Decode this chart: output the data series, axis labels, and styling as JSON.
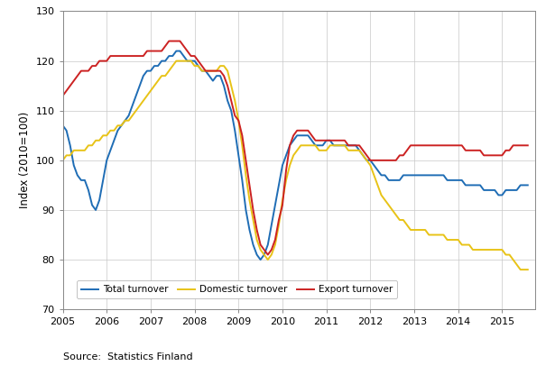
{
  "title": "",
  "ylabel": "Index (2010=100)",
  "source": "Source:  Statistics Finland",
  "ylim": [
    70,
    130
  ],
  "xlim": [
    2005.0,
    2015.75
  ],
  "yticks": [
    70,
    80,
    90,
    100,
    110,
    120,
    130
  ],
  "xticks": [
    2005,
    2006,
    2007,
    2008,
    2009,
    2010,
    2011,
    2012,
    2013,
    2014,
    2015
  ],
  "colors": {
    "total": "#1f6db5",
    "domestic": "#e8c317",
    "export": "#cc2222"
  },
  "legend_labels": [
    "Total turnover",
    "Domestic turnover",
    "Export turnover"
  ],
  "total_x": [
    2005.0,
    2005.083,
    2005.167,
    2005.25,
    2005.333,
    2005.417,
    2005.5,
    2005.583,
    2005.667,
    2005.75,
    2005.833,
    2005.917,
    2006.0,
    2006.083,
    2006.167,
    2006.25,
    2006.333,
    2006.417,
    2006.5,
    2006.583,
    2006.667,
    2006.75,
    2006.833,
    2006.917,
    2007.0,
    2007.083,
    2007.167,
    2007.25,
    2007.333,
    2007.417,
    2007.5,
    2007.583,
    2007.667,
    2007.75,
    2007.833,
    2007.917,
    2008.0,
    2008.083,
    2008.167,
    2008.25,
    2008.333,
    2008.417,
    2008.5,
    2008.583,
    2008.667,
    2008.75,
    2008.833,
    2008.917,
    2009.0,
    2009.083,
    2009.167,
    2009.25,
    2009.333,
    2009.417,
    2009.5,
    2009.583,
    2009.667,
    2009.75,
    2009.833,
    2009.917,
    2010.0,
    2010.083,
    2010.167,
    2010.25,
    2010.333,
    2010.417,
    2010.5,
    2010.583,
    2010.667,
    2010.75,
    2010.833,
    2010.917,
    2011.0,
    2011.083,
    2011.167,
    2011.25,
    2011.333,
    2011.417,
    2011.5,
    2011.583,
    2011.667,
    2011.75,
    2011.833,
    2011.917,
    2012.0,
    2012.083,
    2012.167,
    2012.25,
    2012.333,
    2012.417,
    2012.5,
    2012.583,
    2012.667,
    2012.75,
    2012.833,
    2012.917,
    2013.0,
    2013.083,
    2013.167,
    2013.25,
    2013.333,
    2013.417,
    2013.5,
    2013.583,
    2013.667,
    2013.75,
    2013.833,
    2013.917,
    2014.0,
    2014.083,
    2014.167,
    2014.25,
    2014.333,
    2014.417,
    2014.5,
    2014.583,
    2014.667,
    2014.75,
    2014.833,
    2014.917,
    2015.0,
    2015.083,
    2015.167,
    2015.25,
    2015.333,
    2015.417,
    2015.5,
    2015.583
  ],
  "total_y": [
    107,
    106,
    103,
    99,
    97,
    96,
    96,
    94,
    91,
    90,
    92,
    96,
    100,
    102,
    104,
    106,
    107,
    108,
    109,
    111,
    113,
    115,
    117,
    118,
    118,
    119,
    119,
    120,
    120,
    121,
    121,
    122,
    122,
    121,
    120,
    120,
    120,
    119,
    118,
    118,
    117,
    116,
    117,
    117,
    115,
    112,
    110,
    106,
    101,
    96,
    90,
    86,
    83,
    81,
    80,
    81,
    83,
    87,
    91,
    95,
    99,
    101,
    103,
    104,
    105,
    105,
    105,
    105,
    104,
    103,
    103,
    103,
    104,
    104,
    103,
    103,
    103,
    103,
    103,
    103,
    103,
    102,
    101,
    100,
    100,
    99,
    98,
    97,
    97,
    96,
    96,
    96,
    96,
    97,
    97,
    97,
    97,
    97,
    97,
    97,
    97,
    97,
    97,
    97,
    97,
    96,
    96,
    96,
    96,
    96,
    95,
    95,
    95,
    95,
    95,
    94,
    94,
    94,
    94,
    93,
    93,
    94,
    94,
    94,
    94,
    95,
    95,
    95
  ],
  "domestic_x": [
    2005.0,
    2005.083,
    2005.167,
    2005.25,
    2005.333,
    2005.417,
    2005.5,
    2005.583,
    2005.667,
    2005.75,
    2005.833,
    2005.917,
    2006.0,
    2006.083,
    2006.167,
    2006.25,
    2006.333,
    2006.417,
    2006.5,
    2006.583,
    2006.667,
    2006.75,
    2006.833,
    2006.917,
    2007.0,
    2007.083,
    2007.167,
    2007.25,
    2007.333,
    2007.417,
    2007.5,
    2007.583,
    2007.667,
    2007.75,
    2007.833,
    2007.917,
    2008.0,
    2008.083,
    2008.167,
    2008.25,
    2008.333,
    2008.417,
    2008.5,
    2008.583,
    2008.667,
    2008.75,
    2008.833,
    2008.917,
    2009.0,
    2009.083,
    2009.167,
    2009.25,
    2009.333,
    2009.417,
    2009.5,
    2009.583,
    2009.667,
    2009.75,
    2009.833,
    2009.917,
    2010.0,
    2010.083,
    2010.167,
    2010.25,
    2010.333,
    2010.417,
    2010.5,
    2010.583,
    2010.667,
    2010.75,
    2010.833,
    2010.917,
    2011.0,
    2011.083,
    2011.167,
    2011.25,
    2011.333,
    2011.417,
    2011.5,
    2011.583,
    2011.667,
    2011.75,
    2011.833,
    2011.917,
    2012.0,
    2012.083,
    2012.167,
    2012.25,
    2012.333,
    2012.417,
    2012.5,
    2012.583,
    2012.667,
    2012.75,
    2012.833,
    2012.917,
    2013.0,
    2013.083,
    2013.167,
    2013.25,
    2013.333,
    2013.417,
    2013.5,
    2013.583,
    2013.667,
    2013.75,
    2013.833,
    2013.917,
    2014.0,
    2014.083,
    2014.167,
    2014.25,
    2014.333,
    2014.417,
    2014.5,
    2014.583,
    2014.667,
    2014.75,
    2014.833,
    2014.917,
    2015.0,
    2015.083,
    2015.167,
    2015.25,
    2015.333,
    2015.417,
    2015.5,
    2015.583
  ],
  "domestic_y": [
    100,
    101,
    101,
    102,
    102,
    102,
    102,
    103,
    103,
    104,
    104,
    105,
    105,
    106,
    106,
    107,
    107,
    108,
    108,
    109,
    110,
    111,
    112,
    113,
    114,
    115,
    116,
    117,
    117,
    118,
    119,
    120,
    120,
    120,
    120,
    120,
    119,
    119,
    118,
    118,
    118,
    118,
    118,
    119,
    119,
    118,
    115,
    112,
    108,
    103,
    97,
    92,
    88,
    84,
    82,
    81,
    80,
    81,
    83,
    87,
    92,
    96,
    99,
    101,
    102,
    103,
    103,
    103,
    103,
    103,
    102,
    102,
    102,
    103,
    103,
    103,
    103,
    103,
    102,
    102,
    102,
    102,
    101,
    100,
    99,
    97,
    95,
    93,
    92,
    91,
    90,
    89,
    88,
    88,
    87,
    86,
    86,
    86,
    86,
    86,
    85,
    85,
    85,
    85,
    85,
    84,
    84,
    84,
    84,
    83,
    83,
    83,
    82,
    82,
    82,
    82,
    82,
    82,
    82,
    82,
    82,
    81,
    81,
    80,
    79,
    78,
    78,
    78
  ],
  "export_x": [
    2005.0,
    2005.083,
    2005.167,
    2005.25,
    2005.333,
    2005.417,
    2005.5,
    2005.583,
    2005.667,
    2005.75,
    2005.833,
    2005.917,
    2006.0,
    2006.083,
    2006.167,
    2006.25,
    2006.333,
    2006.417,
    2006.5,
    2006.583,
    2006.667,
    2006.75,
    2006.833,
    2006.917,
    2007.0,
    2007.083,
    2007.167,
    2007.25,
    2007.333,
    2007.417,
    2007.5,
    2007.583,
    2007.667,
    2007.75,
    2007.833,
    2007.917,
    2008.0,
    2008.083,
    2008.167,
    2008.25,
    2008.333,
    2008.417,
    2008.5,
    2008.583,
    2008.667,
    2008.75,
    2008.833,
    2008.917,
    2009.0,
    2009.083,
    2009.167,
    2009.25,
    2009.333,
    2009.417,
    2009.5,
    2009.583,
    2009.667,
    2009.75,
    2009.833,
    2009.917,
    2010.0,
    2010.083,
    2010.167,
    2010.25,
    2010.333,
    2010.417,
    2010.5,
    2010.583,
    2010.667,
    2010.75,
    2010.833,
    2010.917,
    2011.0,
    2011.083,
    2011.167,
    2011.25,
    2011.333,
    2011.417,
    2011.5,
    2011.583,
    2011.667,
    2011.75,
    2011.833,
    2011.917,
    2012.0,
    2012.083,
    2012.167,
    2012.25,
    2012.333,
    2012.417,
    2012.5,
    2012.583,
    2012.667,
    2012.75,
    2012.833,
    2012.917,
    2013.0,
    2013.083,
    2013.167,
    2013.25,
    2013.333,
    2013.417,
    2013.5,
    2013.583,
    2013.667,
    2013.75,
    2013.833,
    2013.917,
    2014.0,
    2014.083,
    2014.167,
    2014.25,
    2014.333,
    2014.417,
    2014.5,
    2014.583,
    2014.667,
    2014.75,
    2014.833,
    2014.917,
    2015.0,
    2015.083,
    2015.167,
    2015.25,
    2015.333,
    2015.417,
    2015.5,
    2015.583
  ],
  "export_y": [
    113,
    114,
    115,
    116,
    117,
    118,
    118,
    118,
    119,
    119,
    120,
    120,
    120,
    121,
    121,
    121,
    121,
    121,
    121,
    121,
    121,
    121,
    121,
    122,
    122,
    122,
    122,
    122,
    123,
    124,
    124,
    124,
    124,
    123,
    122,
    121,
    121,
    120,
    119,
    118,
    118,
    118,
    118,
    118,
    117,
    115,
    112,
    109,
    108,
    105,
    100,
    95,
    90,
    86,
    83,
    82,
    81,
    82,
    84,
    88,
    91,
    98,
    103,
    105,
    106,
    106,
    106,
    106,
    105,
    104,
    104,
    104,
    104,
    104,
    104,
    104,
    104,
    104,
    103,
    103,
    103,
    103,
    102,
    101,
    100,
    100,
    100,
    100,
    100,
    100,
    100,
    100,
    101,
    101,
    102,
    103,
    103,
    103,
    103,
    103,
    103,
    103,
    103,
    103,
    103,
    103,
    103,
    103,
    103,
    103,
    102,
    102,
    102,
    102,
    102,
    101,
    101,
    101,
    101,
    101,
    101,
    102,
    102,
    103,
    103,
    103,
    103,
    103
  ]
}
